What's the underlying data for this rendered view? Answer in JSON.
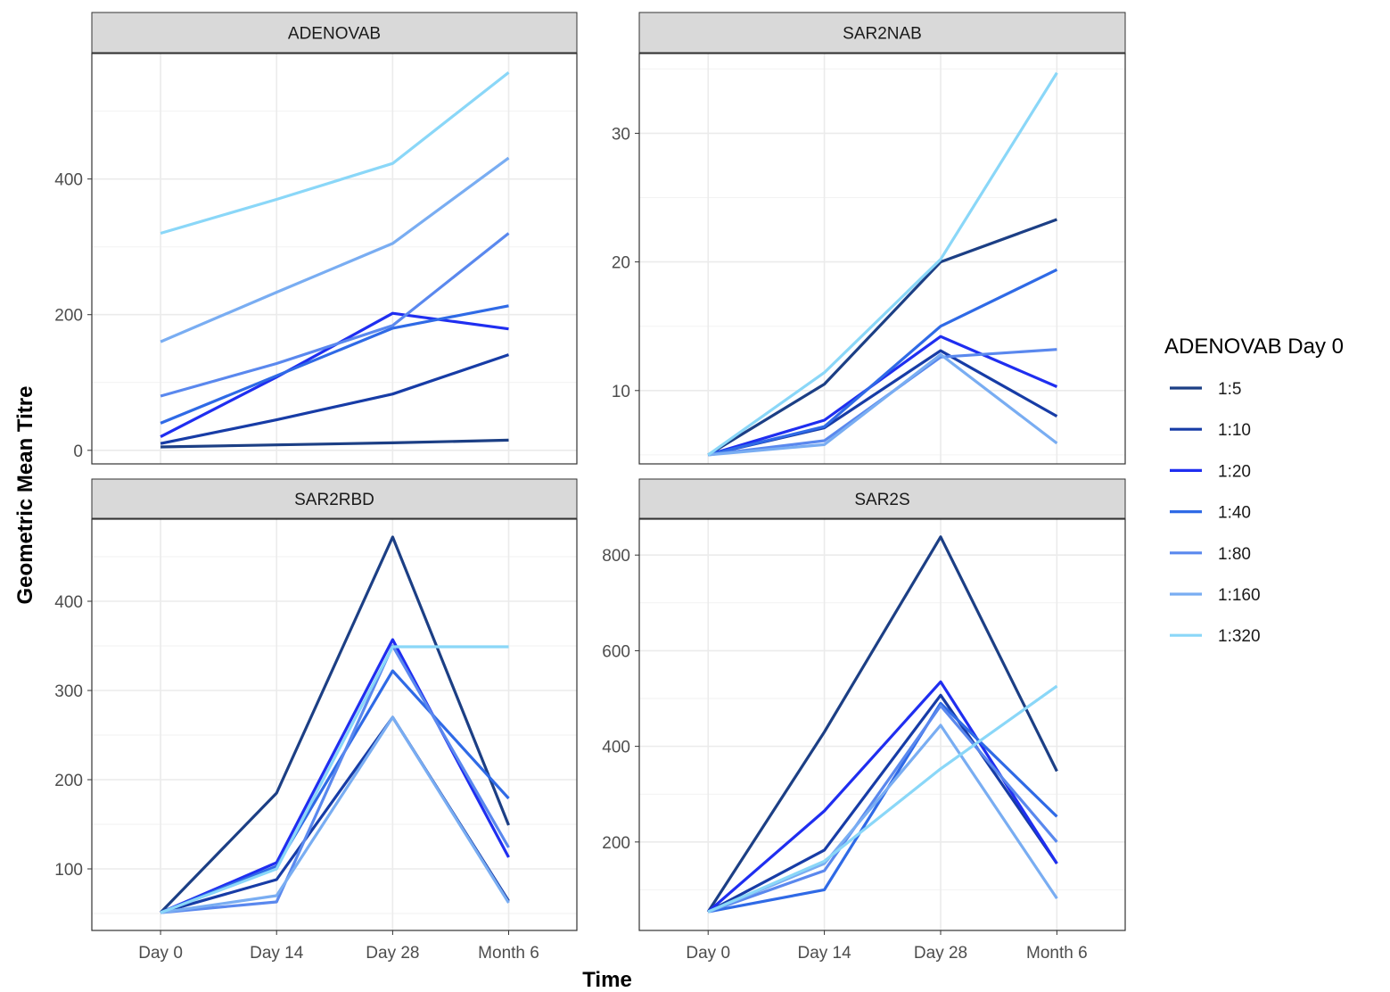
{
  "chart_data": {
    "type": "line",
    "xlabel": "Time",
    "ylabel": "Geometric Mean Titre",
    "categories": [
      "Day 0",
      "Day 14",
      "Day 28",
      "Month 6"
    ],
    "legend": {
      "title": "ADENOVAB Day 0",
      "placement": "right",
      "groups": [
        "1:5",
        "1:10",
        "1:20",
        "1:40",
        "1:80",
        "1:160",
        "1:320"
      ],
      "colors": [
        "#1c3f85",
        "#173ca6",
        "#1f2ef0",
        "#2f6ae6",
        "#5a88ee",
        "#79adf2",
        "#8ad7f8"
      ]
    },
    "grid": true,
    "panels": [
      {
        "strip": "ADENOVAB",
        "ylim": [
          -20,
          585
        ],
        "yticks": [
          0,
          200,
          400
        ],
        "yticks_minor": [
          100,
          300,
          500
        ],
        "series": [
          {
            "name": "1:5",
            "values": [
              5,
              8,
              11,
              15
            ]
          },
          {
            "name": "1:10",
            "values": [
              10,
              45,
              83,
              141
            ]
          },
          {
            "name": "1:20",
            "values": [
              20,
              108,
              202,
              179
            ]
          },
          {
            "name": "1:40",
            "values": [
              40,
              110,
              180,
              213
            ]
          },
          {
            "name": "1:80",
            "values": [
              80,
              128,
              184,
              320
            ]
          },
          {
            "name": "1:160",
            "values": [
              160,
              233,
              305,
              431
            ]
          },
          {
            "name": "1:320",
            "values": [
              320,
              370,
              423,
              557
            ]
          }
        ]
      },
      {
        "strip": "SAR2NAB",
        "ylim": [
          4.3,
          36.2
        ],
        "yticks": [
          10,
          20,
          30
        ],
        "yticks_minor": [
          5,
          15,
          25,
          35
        ],
        "series": [
          {
            "name": "1:5",
            "values": [
              5,
              10.5,
              20,
              23.3
            ]
          },
          {
            "name": "1:10",
            "values": [
              5,
              7.1,
              13.1,
              8
            ]
          },
          {
            "name": "1:20",
            "values": [
              5,
              7.7,
              14.2,
              10.3
            ]
          },
          {
            "name": "1:40",
            "values": [
              5,
              7.2,
              15,
              19.4
            ]
          },
          {
            "name": "1:80",
            "values": [
              5,
              6.1,
              12.6,
              13.2
            ]
          },
          {
            "name": "1:160",
            "values": [
              5,
              5.8,
              12.8,
              5.9
            ]
          },
          {
            "name": "1:320",
            "values": [
              5,
              11.4,
              20.2,
              34.7
            ]
          }
        ]
      },
      {
        "strip": "SAR2RBD",
        "ylim": [
          31,
          492
        ],
        "yticks": [
          100,
          200,
          300,
          400
        ],
        "yticks_minor": [
          50,
          150,
          250,
          350,
          450
        ],
        "series": [
          {
            "name": "1:5",
            "values": [
              51,
              185,
              472,
              149
            ]
          },
          {
            "name": "1:10",
            "values": [
              51,
              88,
              270,
              64
            ]
          },
          {
            "name": "1:20",
            "values": [
              51,
              107,
              357,
              113
            ]
          },
          {
            "name": "1:40",
            "values": [
              51,
              103,
              322,
              179
            ]
          },
          {
            "name": "1:80",
            "values": [
              51,
              63,
              350,
              124
            ]
          },
          {
            "name": "1:160",
            "values": [
              51,
              70,
              270,
              62
            ]
          },
          {
            "name": "1:320",
            "values": [
              51,
              100,
              349,
              349
            ]
          }
        ]
      },
      {
        "strip": "SAR2S",
        "ylim": [
          15,
          875
        ],
        "yticks": [
          200,
          400,
          600,
          800
        ],
        "yticks_minor": [
          100,
          300,
          500,
          700
        ],
        "series": [
          {
            "name": "1:5",
            "values": [
              54,
              430,
              838,
              348
            ]
          },
          {
            "name": "1:10",
            "values": [
              54,
              183,
              507,
              155
            ]
          },
          {
            "name": "1:20",
            "values": [
              54,
              265,
              535,
              155
            ]
          },
          {
            "name": "1:40",
            "values": [
              54,
              100,
              490,
              253
            ]
          },
          {
            "name": "1:80",
            "values": [
              54,
              140,
              485,
              200
            ]
          },
          {
            "name": "1:160",
            "values": [
              54,
              155,
              444,
              82
            ]
          },
          {
            "name": "1:320",
            "values": [
              54,
              160,
              353,
              526
            ]
          }
        ]
      }
    ]
  }
}
